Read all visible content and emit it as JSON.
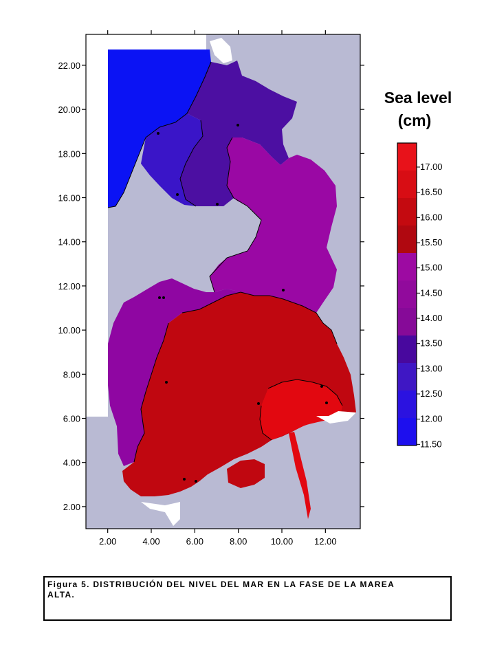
{
  "chart_data": {
    "type": "heatmap",
    "xlim": [
      1.0,
      13.6
    ],
    "ylim": [
      1.0,
      23.4
    ],
    "x_ticks": [
      "2.00",
      "4.00",
      "6.00",
      "8.00",
      "10.00",
      "12.00"
    ],
    "y_ticks": [
      "2.00",
      "4.00",
      "6.00",
      "8.00",
      "10.00",
      "12.00",
      "14.00",
      "16.00",
      "18.00",
      "20.00",
      "22.00"
    ],
    "x_tick_values": [
      2,
      4,
      6,
      8,
      10,
      12
    ],
    "y_tick_values": [
      2,
      4,
      6,
      8,
      10,
      12,
      14,
      16,
      18,
      20,
      22
    ],
    "legend": {
      "title_line1": "Sea level",
      "title_line2": "(cm)",
      "levels": [
        "17.00",
        "16.50",
        "16.00",
        "15.50",
        "15.00",
        "14.50",
        "14.00",
        "13.50",
        "13.00",
        "12.50",
        "12.00",
        "11.50"
      ],
      "level_values": [
        17.0,
        16.5,
        16.0,
        15.5,
        15.0,
        14.5,
        14.0,
        13.5,
        13.0,
        12.5,
        12.0,
        11.5
      ],
      "colors": [
        "#e8121a",
        "#d80d14",
        "#c40a10",
        "#b00810",
        "#9d0aa2",
        "#910a9c",
        "#860a98",
        "#48089e",
        "#3f17c4",
        "#2b12e0",
        "#1d0fee",
        "#0a0bf8"
      ]
    },
    "land_color": "#b9bad3",
    "regions": [
      {
        "name": "open-boundary",
        "value": 11.8,
        "color": "#0b13f4"
      },
      {
        "name": "north-channel",
        "value": 13.3,
        "color": "#3a15c8"
      },
      {
        "name": "north-bay",
        "value": 13.7,
        "color": "#4c0fa2"
      },
      {
        "name": "central-east",
        "value": 14.6,
        "color": "#9a08a4"
      },
      {
        "name": "central-west",
        "value": 14.6,
        "color": "#8f06a2"
      },
      {
        "name": "south-basin",
        "value": 15.8,
        "color": "#c00710"
      },
      {
        "name": "southeast-bay",
        "value": 16.6,
        "color": "#e20810"
      },
      {
        "name": "south-island",
        "value": 15.8,
        "color": "#c00710"
      }
    ]
  },
  "caption": {
    "line1": "Figura 5. DISTRIBUCIÓN DEL NIVEL DEL MAR EN LA FASE DE LA MAREA",
    "line2": "ALTA."
  }
}
